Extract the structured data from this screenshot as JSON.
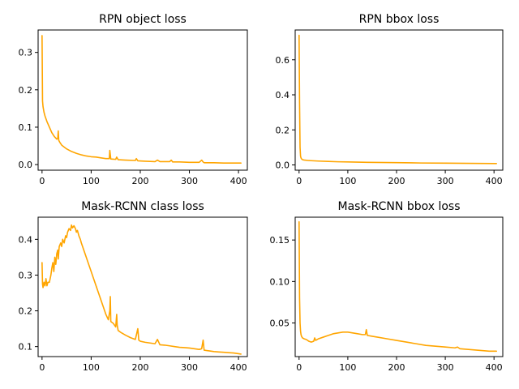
{
  "chart_data": [
    {
      "type": "line",
      "title": "RPN object loss",
      "xlim": [
        -8,
        418
      ],
      "ylim": [
        -0.015,
        0.36
      ],
      "xticks": [
        0,
        100,
        200,
        300,
        400
      ],
      "yticks": [
        0.0,
        0.1,
        0.2,
        0.3
      ],
      "ytick_labels": [
        "0.0",
        "0.1",
        "0.2",
        "0.3"
      ],
      "grid": false,
      "color": "#ffa500",
      "series": [
        {
          "x": [
            0,
            1,
            2,
            4,
            6,
            10,
            15,
            20,
            25,
            30,
            32,
            33,
            34,
            36,
            40,
            50,
            60,
            70,
            80,
            90,
            100,
            110,
            120,
            130,
            137,
            138,
            140,
            150,
            152,
            155,
            170,
            190,
            192,
            195,
            210,
            230,
            235,
            240,
            260,
            263,
            266,
            280,
            300,
            320,
            325,
            328,
            330,
            350,
            370,
            390,
            405
          ],
          "y": [
            0.345,
            0.17,
            0.155,
            0.14,
            0.13,
            0.115,
            0.1,
            0.085,
            0.075,
            0.068,
            0.07,
            0.09,
            0.065,
            0.06,
            0.052,
            0.042,
            0.035,
            0.03,
            0.026,
            0.023,
            0.021,
            0.02,
            0.018,
            0.016,
            0.016,
            0.038,
            0.015,
            0.014,
            0.02,
            0.013,
            0.012,
            0.011,
            0.016,
            0.01,
            0.009,
            0.008,
            0.012,
            0.008,
            0.008,
            0.012,
            0.007,
            0.007,
            0.006,
            0.006,
            0.012,
            0.007,
            0.005,
            0.005,
            0.004,
            0.004,
            0.004
          ]
        }
      ]
    },
    {
      "type": "line",
      "title": "RPN bbox loss",
      "xlim": [
        -8,
        418
      ],
      "ylim": [
        -0.03,
        0.77
      ],
      "xticks": [
        0,
        100,
        200,
        300,
        400
      ],
      "yticks": [
        0.0,
        0.2,
        0.4,
        0.6
      ],
      "ytick_labels": [
        "0.0",
        "0.2",
        "0.4",
        "0.6"
      ],
      "grid": false,
      "color": "#ffa500",
      "series": [
        {
          "x": [
            0,
            1,
            2,
            3,
            4,
            5,
            7,
            10,
            20,
            40,
            60,
            80,
            100,
            140,
            200,
            250,
            300,
            350,
            405
          ],
          "y": [
            0.74,
            0.35,
            0.1,
            0.05,
            0.04,
            0.035,
            0.03,
            0.028,
            0.025,
            0.022,
            0.02,
            0.018,
            0.017,
            0.015,
            0.013,
            0.011,
            0.01,
            0.009,
            0.008
          ]
        }
      ]
    },
    {
      "type": "line",
      "title": "Mask-RCNN class loss",
      "xlim": [
        -8,
        418
      ],
      "ylim": [
        0.072,
        0.462
      ],
      "xticks": [
        0,
        100,
        200,
        300,
        400
      ],
      "yticks": [
        0.1,
        0.2,
        0.3,
        0.4
      ],
      "ytick_labels": [
        "0.1",
        "0.2",
        "0.3",
        "0.4"
      ],
      "grid": false,
      "color": "#ffa500",
      "series": [
        {
          "x": [
            0,
            1,
            2,
            4,
            6,
            8,
            10,
            12,
            15,
            18,
            20,
            22,
            24,
            26,
            28,
            30,
            32,
            33,
            35,
            38,
            40,
            42,
            45,
            48,
            50,
            52,
            55,
            58,
            60,
            62,
            65,
            68,
            70,
            72,
            75,
            78,
            80,
            85,
            90,
            95,
            100,
            105,
            110,
            115,
            120,
            125,
            130,
            135,
            138,
            139,
            140,
            145,
            150,
            152,
            153,
            155,
            160,
            170,
            180,
            190,
            195,
            197,
            200,
            210,
            220,
            230,
            235,
            240,
            250,
            260,
            270,
            280,
            290,
            300,
            310,
            320,
            325,
            328,
            330,
            340,
            350,
            360,
            370,
            380,
            390,
            400,
            405
          ],
          "y": [
            0.335,
            0.275,
            0.265,
            0.28,
            0.27,
            0.29,
            0.27,
            0.28,
            0.28,
            0.3,
            0.32,
            0.335,
            0.31,
            0.35,
            0.33,
            0.36,
            0.37,
            0.345,
            0.38,
            0.39,
            0.38,
            0.4,
            0.39,
            0.41,
            0.405,
            0.42,
            0.43,
            0.425,
            0.44,
            0.432,
            0.438,
            0.43,
            0.42,
            0.425,
            0.41,
            0.4,
            0.39,
            0.37,
            0.35,
            0.33,
            0.31,
            0.29,
            0.27,
            0.25,
            0.23,
            0.21,
            0.19,
            0.175,
            0.2,
            0.24,
            0.17,
            0.165,
            0.155,
            0.19,
            0.16,
            0.145,
            0.14,
            0.132,
            0.125,
            0.12,
            0.15,
            0.118,
            0.115,
            0.112,
            0.11,
            0.108,
            0.12,
            0.105,
            0.104,
            0.102,
            0.1,
            0.098,
            0.097,
            0.096,
            0.094,
            0.092,
            0.094,
            0.118,
            0.09,
            0.088,
            0.086,
            0.085,
            0.084,
            0.083,
            0.082,
            0.08,
            0.079
          ]
        }
      ]
    },
    {
      "type": "line",
      "title": "Mask-RCNN bbox loss",
      "xlim": [
        -8,
        418
      ],
      "ylim": [
        0.0095,
        0.1775
      ],
      "xticks": [
        0,
        100,
        200,
        300,
        400
      ],
      "yticks": [
        0.05,
        0.1,
        0.15
      ],
      "ytick_labels": [
        "0.05",
        "0.10",
        "0.15"
      ],
      "grid": false,
      "color": "#ffa500",
      "series": [
        {
          "x": [
            0,
            1,
            2,
            3,
            4,
            5,
            7,
            10,
            15,
            20,
            25,
            30,
            32,
            34,
            40,
            50,
            60,
            70,
            80,
            90,
            100,
            110,
            120,
            130,
            136,
            138,
            140,
            150,
            160,
            180,
            200,
            220,
            240,
            260,
            280,
            300,
            320,
            325,
            330,
            350,
            370,
            390,
            405
          ],
          "y": [
            0.172,
            0.08,
            0.05,
            0.04,
            0.036,
            0.034,
            0.032,
            0.031,
            0.03,
            0.028,
            0.027,
            0.028,
            0.032,
            0.029,
            0.031,
            0.033,
            0.035,
            0.037,
            0.038,
            0.039,
            0.039,
            0.038,
            0.037,
            0.036,
            0.036,
            0.042,
            0.035,
            0.034,
            0.033,
            0.031,
            0.029,
            0.027,
            0.025,
            0.023,
            0.022,
            0.021,
            0.02,
            0.021,
            0.019,
            0.018,
            0.017,
            0.016,
            0.016
          ]
        }
      ]
    }
  ]
}
